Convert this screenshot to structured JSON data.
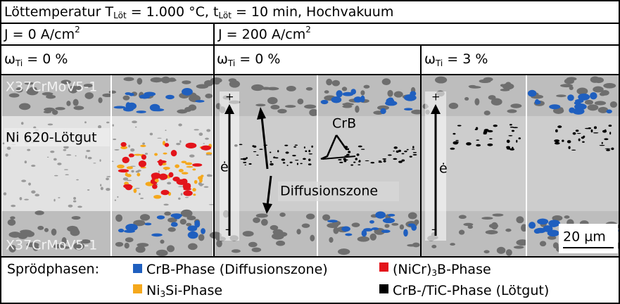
{
  "header": {
    "title": [
      "Löttemperatur T",
      "Löt",
      " = 1.000 °C, t",
      "Löt",
      " = 10 min, Hochvakuum"
    ]
  },
  "columns": [
    {
      "current": [
        "J = 0 A/cm",
        "2"
      ],
      "subcolumns": [
        [
          "ω",
          "Ti",
          " = 0 %"
        ]
      ]
    },
    {
      "current": [
        "J = 200 A/cm",
        "2"
      ],
      "subcolumns": [
        [
          "ω",
          "Ti",
          " = 0 %"
        ],
        [
          "ω",
          "Ti",
          " = 3 %"
        ]
      ]
    }
  ],
  "micrographs": {
    "steel_top": "X37CrMoV5-1",
    "steel_bottom": "X37CrMoV5-1",
    "solder": "Ni 620-Lötgut",
    "plus": "+",
    "minus": "-",
    "e_dot": "ė",
    "phase_label": "CrB",
    "zone_label": "Diffusionszone",
    "scale_bar": "20 µm"
  },
  "legend": {
    "title": "Sprödphasen:",
    "items": [
      {
        "label": [
          "CrB-Phase (Diffusionszone)"
        ],
        "color": "#1f5fbf"
      },
      {
        "label": [
          "(NiCr)",
          "3",
          "B-Phase"
        ],
        "color": "#e3141b"
      },
      {
        "label": [
          "Ni",
          "3",
          "Si-Phase"
        ],
        "color": "#f5a81c"
      },
      {
        "label": [
          "CrB-/TiC-Phase (Lötgut)"
        ],
        "color": "#000000"
      }
    ]
  }
}
